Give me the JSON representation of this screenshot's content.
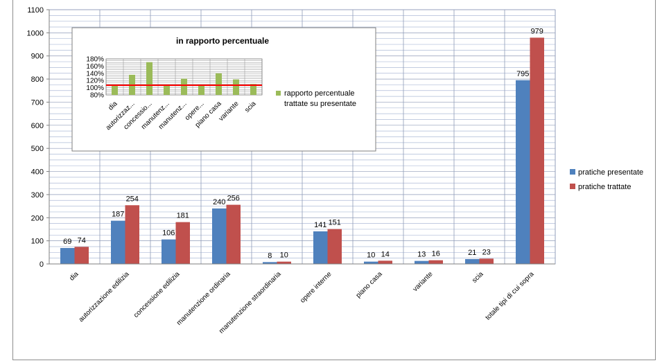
{
  "chart_data": {
    "main": {
      "type": "bar",
      "title": "",
      "xlabel": "",
      "ylabel": "",
      "ylim": [
        0,
        1100
      ],
      "ytick_step": 100,
      "grid": "horizontal and vertical",
      "legend_position": "right",
      "categories": [
        "dia",
        "autorizzazione edilizia",
        "concessione edilizia",
        "manutenzione ordinaria",
        "manutenzione straordinaria",
        "opere interne",
        "piano casa",
        "variante",
        "scia",
        "totale tipi di cui sopra"
      ],
      "series": [
        {
          "name": "pratiche presentate",
          "color": "#4f81bd",
          "values": [
            69,
            187,
            106,
            240,
            8,
            141,
            10,
            13,
            21,
            795
          ]
        },
        {
          "name": "pratiche trattate",
          "color": "#c0504d",
          "values": [
            74,
            254,
            181,
            256,
            10,
            151,
            14,
            16,
            23,
            979
          ]
        }
      ]
    },
    "inset": {
      "type": "bar",
      "title": "in rapporto percentuale",
      "ylim": [
        80,
        180
      ],
      "yticks": [
        "80%",
        "100%",
        "120%",
        "140%",
        "160%",
        "180%"
      ],
      "reference_line": 107,
      "reference_color": "#ff0000",
      "categories": [
        "dia",
        "autorizzaz...",
        "concessio...",
        "manutenz...",
        "manutenz...",
        "opere...",
        "piano casa",
        "variante",
        "scia"
      ],
      "series": [
        {
          "name": "rapporto percentuale trattate su presentate",
          "color": "#9bbb59",
          "values": [
            107,
            136,
            171,
            107,
            125,
            107,
            140,
            123,
            110
          ]
        }
      ],
      "legend_lines": [
        "rapporto percentuale",
        "trattate su presentate"
      ]
    }
  }
}
